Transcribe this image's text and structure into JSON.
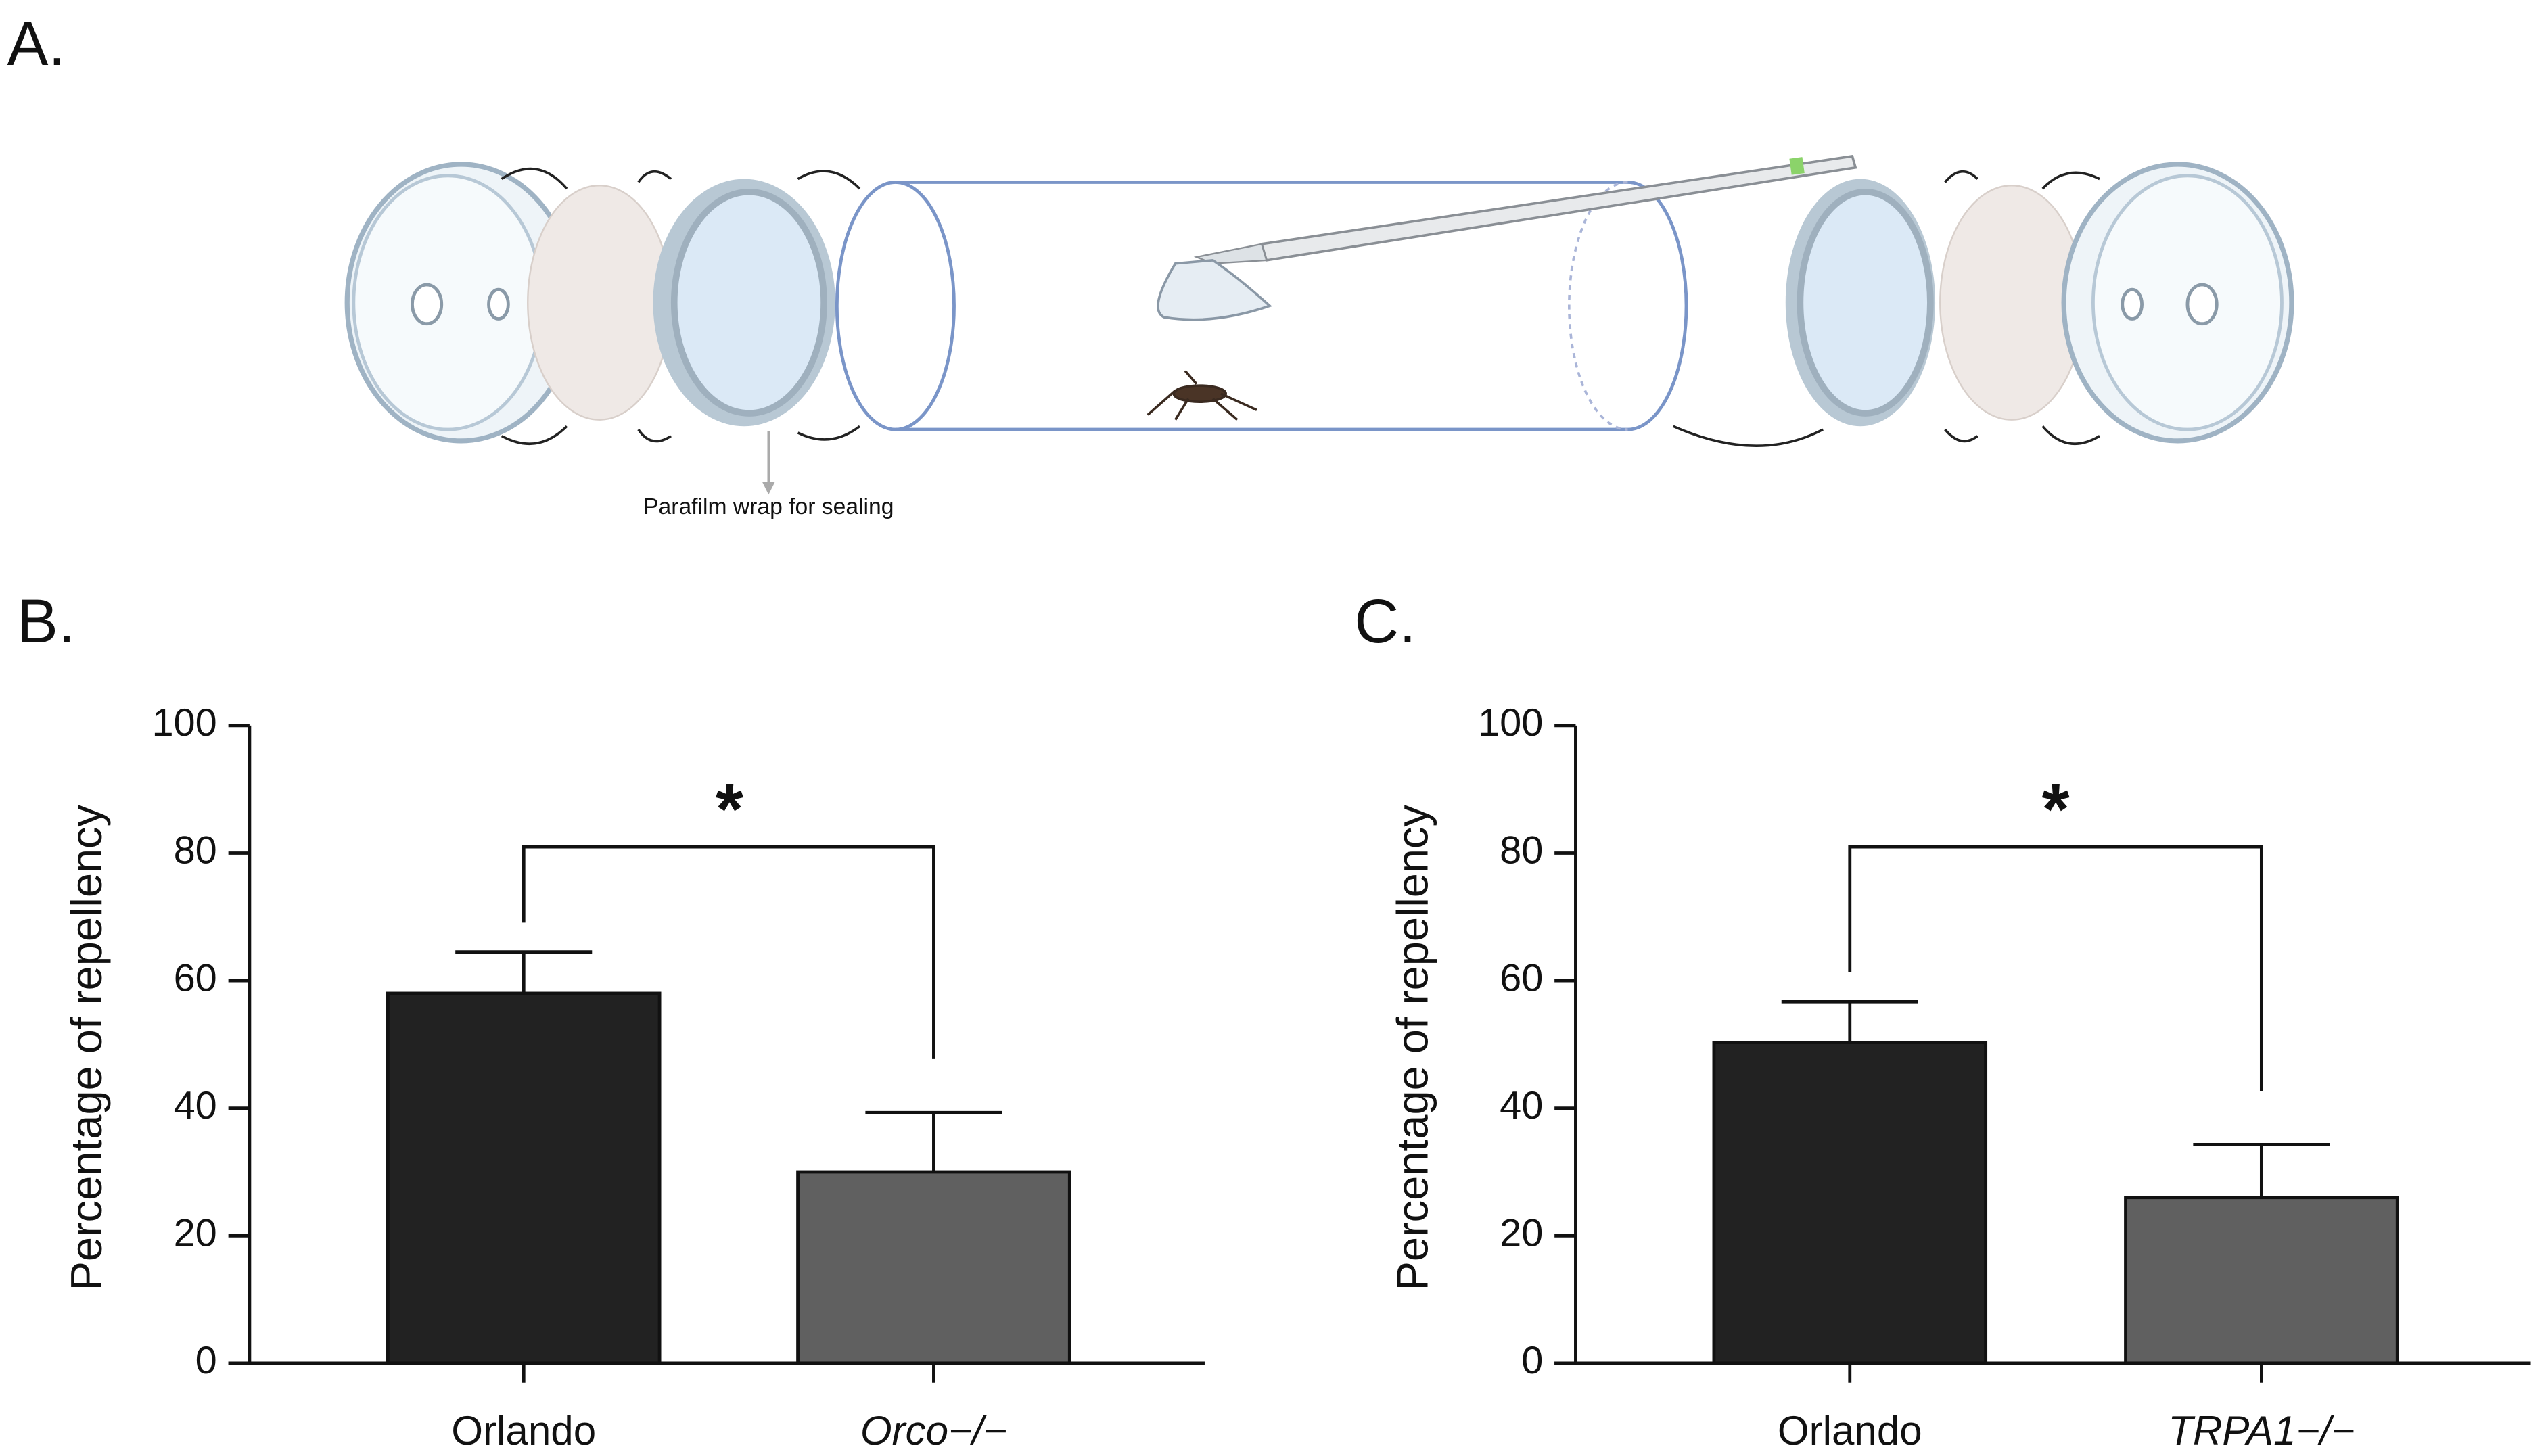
{
  "panel_labels": [
    "A.",
    "B.",
    "C."
  ],
  "diagram": {
    "annotation": "Parafilm wrap for sealing"
  },
  "chart_data": [
    {
      "type": "bar",
      "categories": [
        "Orlando",
        "Orco−/−"
      ],
      "values": [
        58,
        30
      ],
      "errors": [
        6.5,
        9.3
      ],
      "colors": [
        "#222222",
        "#606060"
      ],
      "ylabel": "Percentage of repellency",
      "ylim": [
        0,
        100
      ],
      "yticks": [
        0,
        20,
        40,
        60,
        80,
        100
      ],
      "significance": "*"
    },
    {
      "type": "bar",
      "categories": [
        "Orlando",
        "TRPA1−/−"
      ],
      "values": [
        50.3,
        26
      ],
      "errors": [
        6.4,
        8.3
      ],
      "colors": [
        "#222222",
        "#606060"
      ],
      "ylabel": "Percentage of repellency",
      "ylim": [
        0,
        100
      ],
      "yticks": [
        0,
        20,
        40,
        60,
        80,
        100
      ],
      "significance": "*"
    }
  ]
}
